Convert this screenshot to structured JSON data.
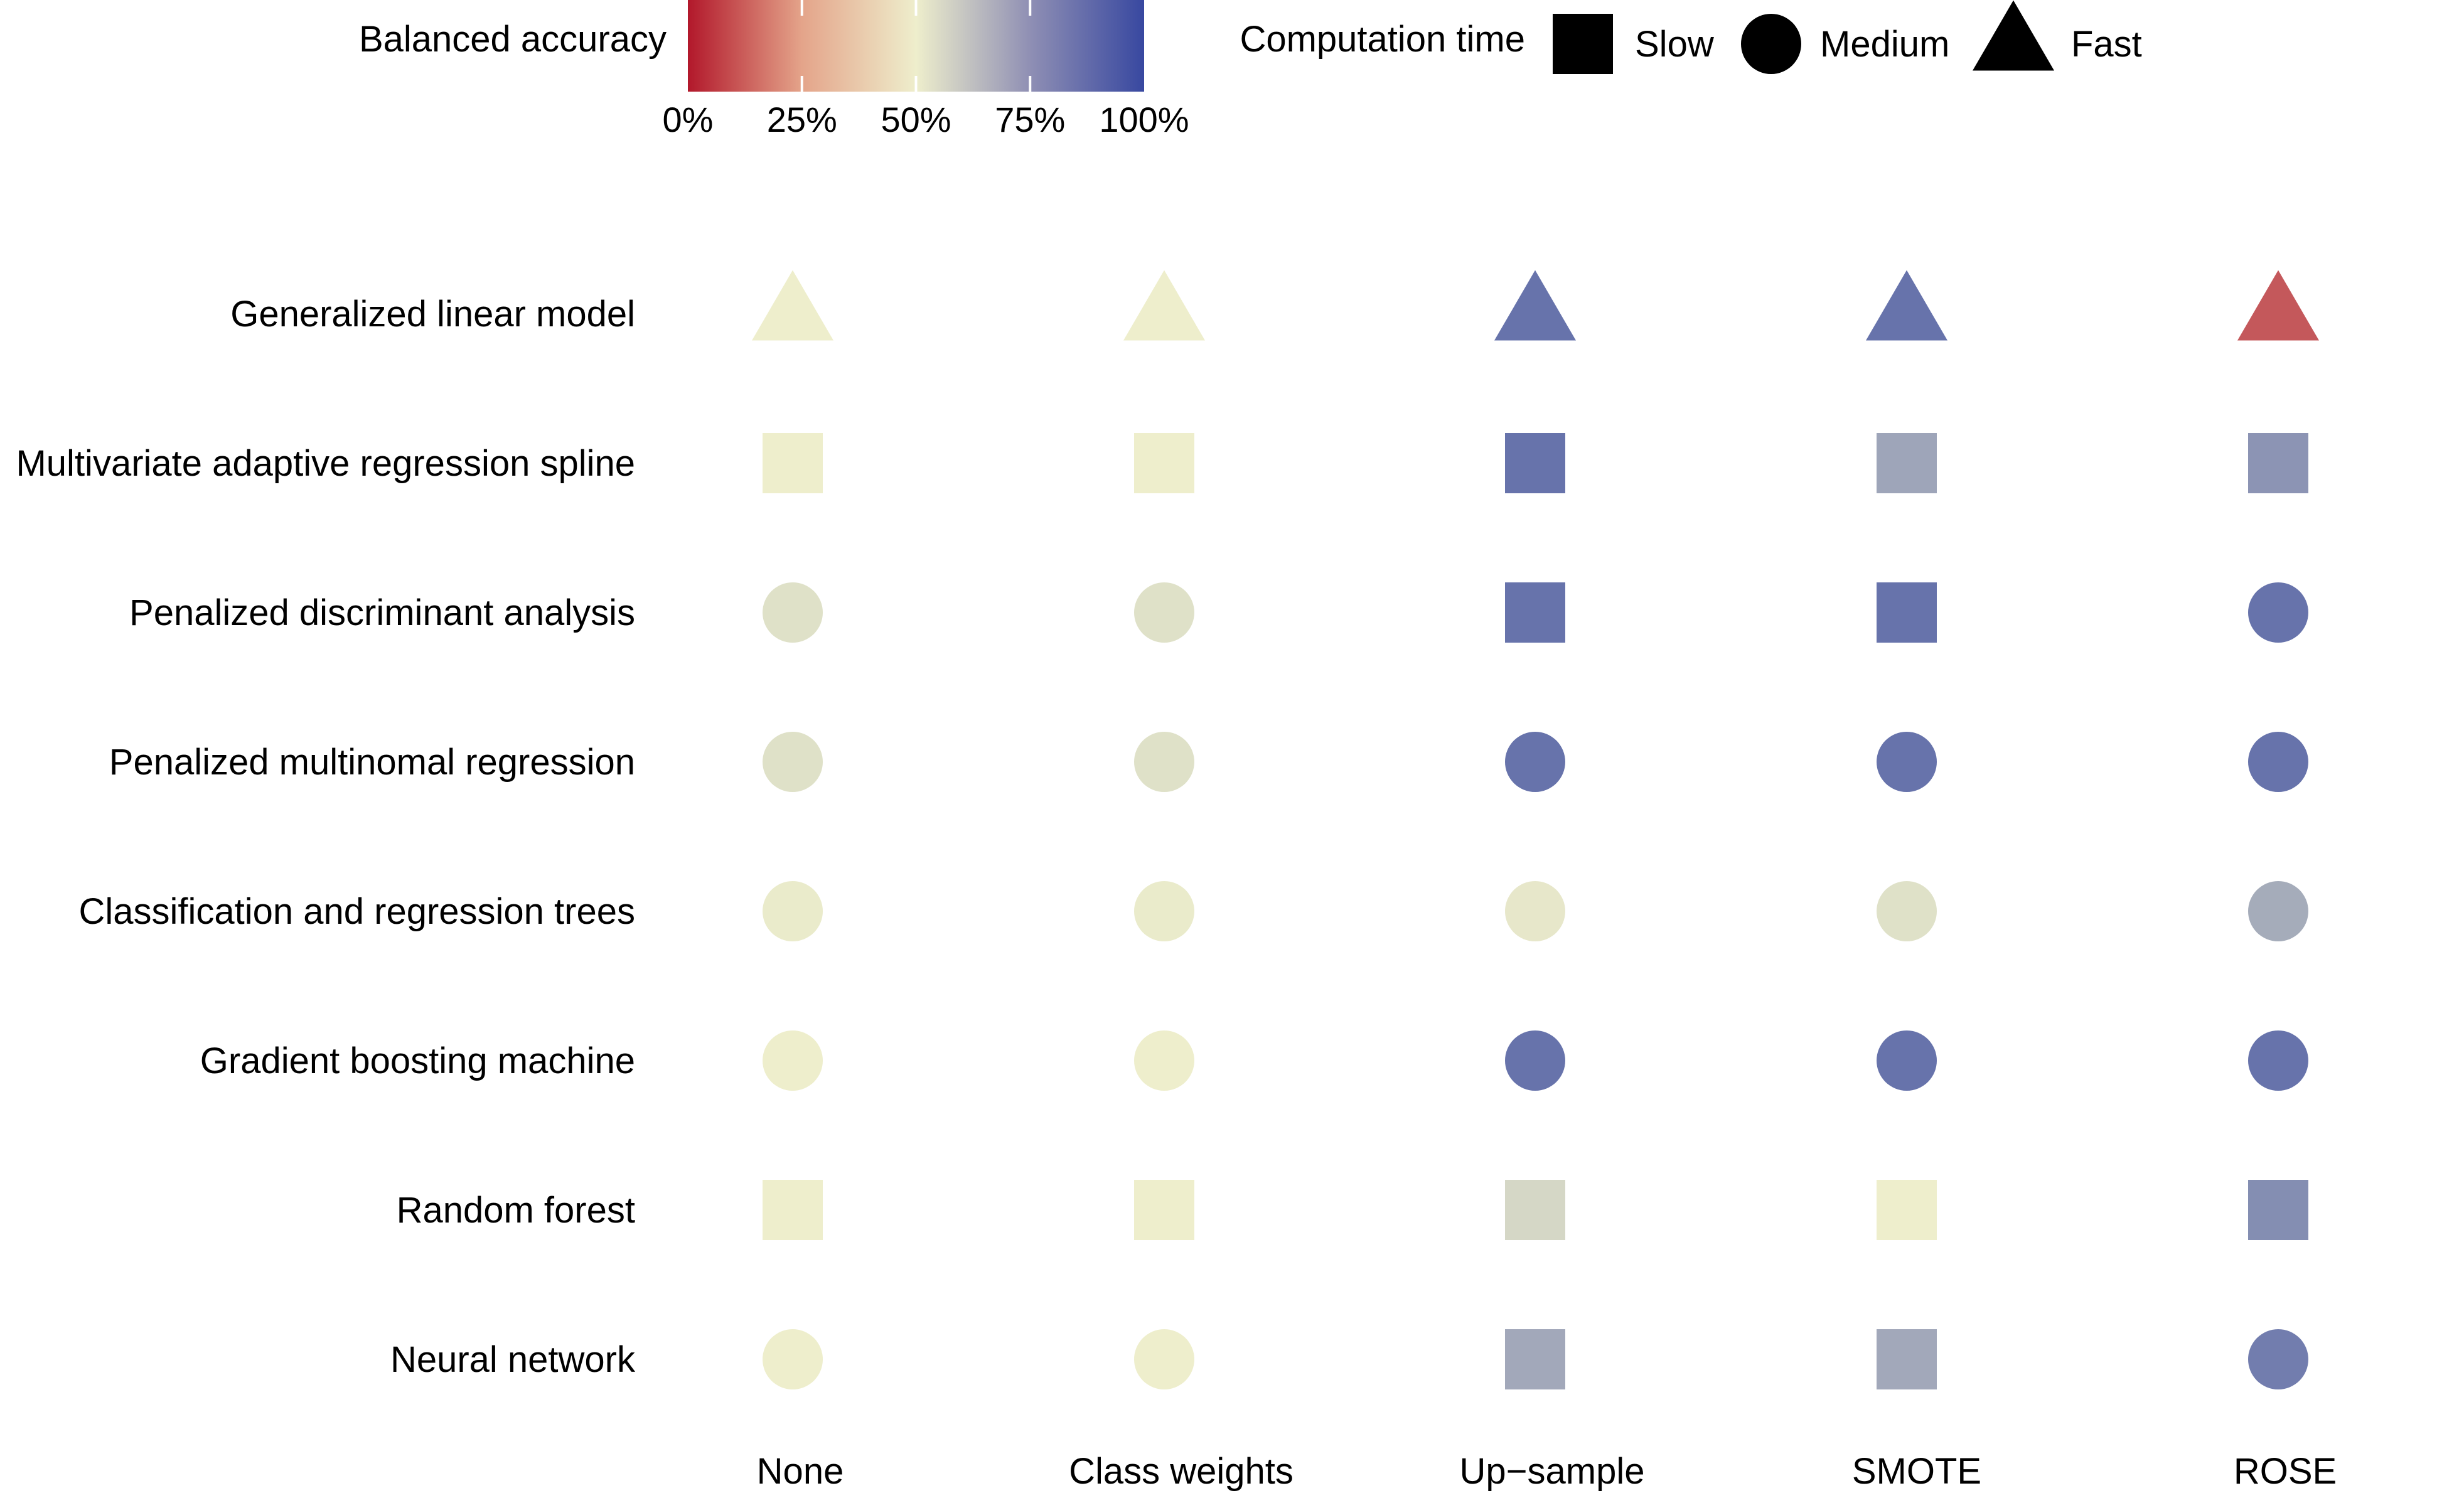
{
  "chart_data": {
    "type": "heatmap",
    "title": "",
    "xlabel": "",
    "ylabel": "",
    "rows": [
      "Generalized linear model",
      "Multivariate adaptive regression spline",
      "Penalized discriminant analysis",
      "Penalized multinomal regression",
      "Classification and regression trees",
      "Gradient boosting machine",
      "Random forest",
      "Neural network"
    ],
    "columns": [
      "None",
      "Class weights",
      "Up−sample",
      "SMOTE",
      "ROSE"
    ],
    "balanced_accuracy_pct": [
      [
        50,
        50,
        87,
        87,
        15
      ],
      [
        50,
        50,
        87,
        72,
        77
      ],
      [
        54,
        54,
        87,
        87,
        87
      ],
      [
        54,
        54,
        87,
        87,
        87
      ],
      [
        51,
        51,
        52,
        54,
        70
      ],
      [
        50,
        50,
        87,
        87,
        87
      ],
      [
        50,
        50,
        57,
        50,
        79
      ],
      [
        50,
        50,
        71,
        71,
        84
      ]
    ],
    "computation_time": [
      [
        "Fast",
        "Fast",
        "Fast",
        "Fast",
        "Fast"
      ],
      [
        "Slow",
        "Slow",
        "Slow",
        "Slow",
        "Slow"
      ],
      [
        "Medium",
        "Medium",
        "Slow",
        "Slow",
        "Medium"
      ],
      [
        "Medium",
        "Medium",
        "Medium",
        "Medium",
        "Medium"
      ],
      [
        "Medium",
        "Medium",
        "Medium",
        "Medium",
        "Medium"
      ],
      [
        "Medium",
        "Medium",
        "Medium",
        "Medium",
        "Medium"
      ],
      [
        "Slow",
        "Slow",
        "Slow",
        "Slow",
        "Slow"
      ],
      [
        "Medium",
        "Medium",
        "Slow",
        "Slow",
        "Medium"
      ]
    ],
    "color_legend": {
      "title": "Balanced accuracy",
      "ticks": [
        "0%",
        "25%",
        "50%",
        "75%",
        "100%"
      ],
      "range": [
        0,
        100
      ],
      "colors": [
        "#b2182b",
        "#eeeecc",
        "#3848a0"
      ]
    },
    "shape_legend": {
      "title": "Computation time",
      "items": [
        {
          "label": "Slow",
          "shape": "square"
        },
        {
          "label": "Medium",
          "shape": "circle"
        },
        {
          "label": "Fast",
          "shape": "triangle"
        }
      ]
    },
    "grid": false,
    "legend_position": "top"
  }
}
